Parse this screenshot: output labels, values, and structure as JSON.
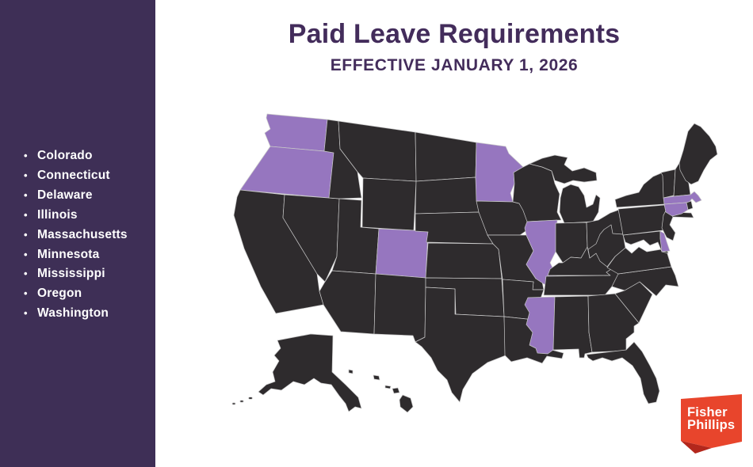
{
  "header": {
    "title": "Paid Leave Requirements",
    "subtitle": "EFFECTIVE JANUARY 1, 2026"
  },
  "sidebar": {
    "bullet_glyph": "•",
    "states": [
      "Colorado",
      "Connecticut",
      "Delaware",
      "Illinois",
      "Massachusetts",
      "Minnesota",
      "Mississippi",
      "Oregon",
      "Washington"
    ]
  },
  "map": {
    "highlighted_states": [
      "washington",
      "oregon",
      "colorado",
      "minnesota",
      "illinois",
      "mississippi",
      "massachusetts",
      "connecticut",
      "delaware"
    ],
    "highlight_color": "#9676BF",
    "state_color": "#2E2B2D",
    "border_color": "#C8C8C8"
  },
  "logo": {
    "line1": "Fisher",
    "line2": "Phillips",
    "banner_color": "#E8452C",
    "fold_color": "#B3271C"
  },
  "theme": {
    "sidebar_bg": "#3E2F56",
    "title_color": "#432C5B",
    "background": "#FFFFFF"
  }
}
